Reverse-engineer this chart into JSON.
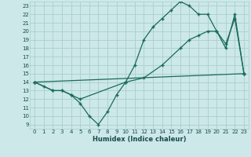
{
  "xlabel": "Humidex (Indice chaleur)",
  "bg_color": "#cce8e8",
  "grid_color": "#aacece",
  "line_color": "#1a6b5a",
  "xlim": [
    -0.5,
    23.5
  ],
  "ylim": [
    8.5,
    23.5
  ],
  "xticks": [
    0,
    1,
    2,
    3,
    4,
    5,
    6,
    7,
    8,
    9,
    10,
    11,
    12,
    13,
    14,
    15,
    16,
    17,
    18,
    19,
    20,
    21,
    22,
    23
  ],
  "yticks": [
    9,
    10,
    11,
    12,
    13,
    14,
    15,
    16,
    17,
    18,
    19,
    20,
    21,
    22,
    23
  ],
  "line1_x": [
    0,
    1,
    2,
    3,
    4,
    5,
    6,
    7,
    8,
    9,
    10,
    11,
    12,
    13,
    14,
    15,
    16,
    17,
    18,
    19,
    20,
    21,
    22,
    23
  ],
  "line1_y": [
    14,
    13.5,
    13,
    13,
    12.5,
    11.5,
    10,
    9,
    10.5,
    12.5,
    14,
    16,
    19,
    20.5,
    21.5,
    22.5,
    23.5,
    23,
    22,
    22,
    20,
    18,
    22,
    15
  ],
  "line2_x": [
    0,
    23
  ],
  "line2_y": [
    14,
    15
  ],
  "line3_x": [
    0,
    2,
    3,
    4,
    5,
    10,
    12,
    14,
    16,
    17,
    18,
    19,
    20,
    21,
    22,
    23
  ],
  "line3_y": [
    14,
    13,
    13,
    12.5,
    12,
    14,
    14.5,
    16,
    18,
    19,
    19.5,
    20,
    20,
    18.5,
    21.5,
    15
  ]
}
